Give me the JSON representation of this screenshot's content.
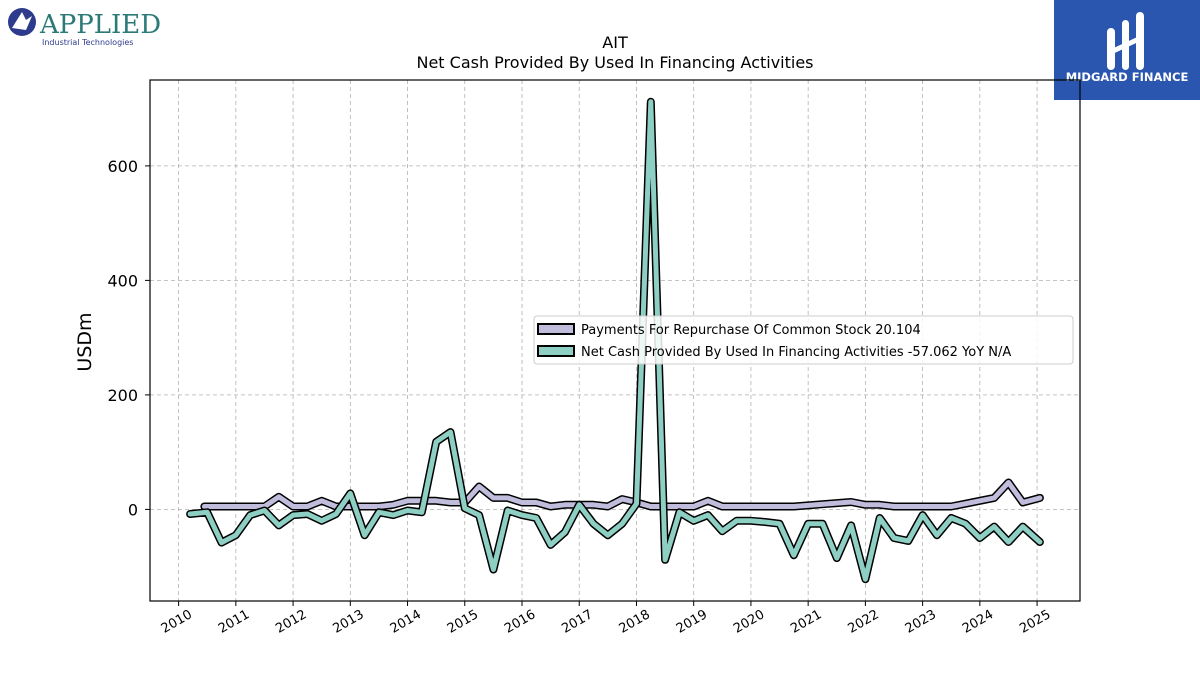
{
  "branding": {
    "left_logo_name": "APPLIED",
    "left_logo_sub": "Industrial Technologies",
    "right_logo_name": "MIDGARD FINANCE"
  },
  "colors": {
    "series_repurchase": "#c0bcdc",
    "series_financing": "#8ecfc4",
    "outline": "#000000",
    "grid": "#b0b0b0",
    "brand_blue": "#2a56b0"
  },
  "chart_data": {
    "type": "line",
    "title": "AIT",
    "subtitle": "Net Cash Provided By Used In Financing Activities",
    "xlabel": "",
    "ylabel": "USDm",
    "ylim": [
      -160,
      750
    ],
    "xlim": [
      2009.5,
      2025.75
    ],
    "x_ticks": [
      2010,
      2011,
      2012,
      2013,
      2014,
      2015,
      2016,
      2017,
      2018,
      2019,
      2020,
      2021,
      2022,
      2023,
      2024,
      2025
    ],
    "y_ticks": [
      0,
      200,
      400,
      600
    ],
    "grid": true,
    "legend_placement": "center-right",
    "series": [
      {
        "name": "Payments For Repurchase Of Common Stock",
        "legend_label": "Payments For Repurchase Of Common Stock  20.104",
        "color_key": "series_repurchase",
        "x": [
          2010.45,
          2010.7,
          2011.0,
          2011.25,
          2011.5,
          2011.75,
          2012.0,
          2012.25,
          2012.5,
          2012.75,
          2013.0,
          2013.25,
          2013.5,
          2013.75,
          2014.0,
          2014.25,
          2014.5,
          2014.75,
          2015.0,
          2015.25,
          2015.5,
          2015.75,
          2016.0,
          2016.25,
          2016.5,
          2016.75,
          2017.0,
          2017.25,
          2017.5,
          2017.75,
          2018.0,
          2018.25,
          2018.5,
          2018.75,
          2019.0,
          2019.25,
          2019.5,
          2019.75,
          2020.0,
          2020.25,
          2020.5,
          2020.75,
          2021.0,
          2021.25,
          2021.5,
          2021.75,
          2022.0,
          2022.25,
          2022.5,
          2022.75,
          2023.0,
          2023.25,
          2023.5,
          2023.75,
          2024.0,
          2024.25,
          2024.5,
          2024.75,
          2025.05
        ],
        "y": [
          5,
          5,
          5,
          5,
          5,
          22,
          5,
          5,
          15,
          5,
          5,
          5,
          5,
          8,
          15,
          15,
          15,
          12,
          12,
          40,
          20,
          20,
          12,
          12,
          5,
          8,
          8,
          8,
          5,
          18,
          12,
          5,
          5,
          5,
          5,
          15,
          5,
          5,
          5,
          5,
          5,
          5,
          7,
          9,
          11,
          13,
          8,
          8,
          5,
          5,
          5,
          5,
          5,
          10,
          15,
          20,
          47,
          12,
          20
        ]
      },
      {
        "name": "Net Cash Provided By Used In Financing Activities",
        "legend_label": "Net Cash Provided By Used In Financing Activities  -57.062 YoY N/A",
        "color_key": "series_financing",
        "x": [
          2010.2,
          2010.5,
          2010.75,
          2011.0,
          2011.25,
          2011.5,
          2011.75,
          2012.0,
          2012.25,
          2012.5,
          2012.75,
          2013.0,
          2013.25,
          2013.5,
          2013.75,
          2014.0,
          2014.25,
          2014.5,
          2014.75,
          2015.0,
          2015.25,
          2015.5,
          2015.75,
          2016.0,
          2016.25,
          2016.5,
          2016.75,
          2017.0,
          2017.25,
          2017.5,
          2017.75,
          2018.0,
          2018.25,
          2018.5,
          2018.75,
          2019.0,
          2019.25,
          2019.5,
          2019.75,
          2020.0,
          2020.25,
          2020.5,
          2020.75,
          2021.0,
          2021.25,
          2021.5,
          2021.75,
          2022.0,
          2022.25,
          2022.5,
          2022.75,
          2023.0,
          2023.25,
          2023.5,
          2023.75,
          2024.0,
          2024.25,
          2024.5,
          2024.75,
          2025.05
        ],
        "y": [
          -8,
          -5,
          -58,
          -45,
          -10,
          -2,
          -28,
          -10,
          -8,
          -20,
          -8,
          28,
          -45,
          -5,
          -10,
          -2,
          -5,
          118,
          135,
          2,
          -10,
          -105,
          -2,
          -10,
          -15,
          -62,
          -40,
          8,
          -25,
          -45,
          -25,
          10,
          712,
          -88,
          -5,
          -20,
          -10,
          -38,
          -20,
          -20,
          -22,
          -25,
          -80,
          -25,
          -25,
          -85,
          -28,
          -122,
          -15,
          -50,
          -55,
          -10,
          -45,
          -15,
          -25,
          -50,
          -30,
          -57,
          -30,
          -57
        ]
      }
    ]
  }
}
